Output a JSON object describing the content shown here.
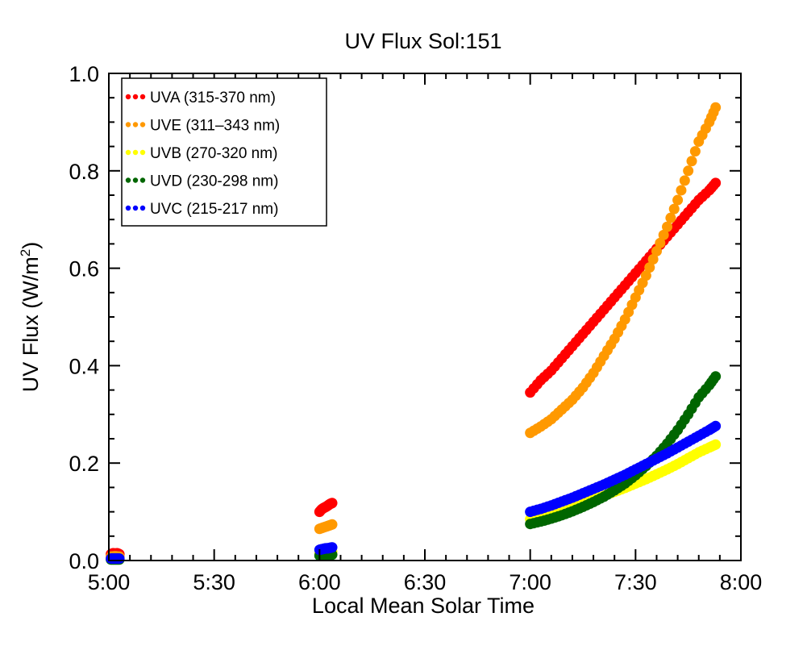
{
  "chart_data": {
    "type": "scatter",
    "title": "UV Flux Sol:151",
    "xlabel": "Local Mean Solar Time",
    "ylabel": "UV Flux (W/m",
    "ylabel_sup": "2",
    "ylabel_close": ")",
    "x_unit": "hours (local mean solar time)",
    "xlim": [
      5.0,
      8.0
    ],
    "ylim": [
      0.0,
      1.0
    ],
    "x_ticks": [
      5.0,
      5.5,
      6.0,
      6.5,
      7.0,
      7.5,
      8.0
    ],
    "x_tick_labels": [
      "5:00",
      "5:30",
      "6:00",
      "6:30",
      "7:00",
      "7:30",
      "8:00"
    ],
    "y_ticks": [
      0.0,
      0.2,
      0.4,
      0.6,
      0.8,
      1.0
    ],
    "y_tick_labels": [
      "0.0",
      "0.2",
      "0.4",
      "0.6",
      "0.8",
      "1.0"
    ],
    "legend_position": "top-left",
    "series": [
      {
        "name": "UVA (315-370 nm)",
        "color": "#ff0000",
        "points": [
          [
            5.01,
            0.013
          ],
          [
            5.02,
            0.015
          ],
          [
            5.03,
            0.014
          ],
          [
            5.04,
            0.015
          ],
          [
            5.05,
            0.013
          ],
          [
            6.0,
            0.1
          ],
          [
            6.01,
            0.105
          ],
          [
            6.02,
            0.108
          ],
          [
            6.03,
            0.11
          ],
          [
            6.04,
            0.113
          ],
          [
            6.05,
            0.116
          ],
          [
            6.06,
            0.118
          ],
          [
            7.0,
            0.345
          ],
          [
            7.05,
            0.37
          ],
          [
            7.1,
            0.39
          ],
          [
            7.15,
            0.415
          ],
          [
            7.2,
            0.44
          ],
          [
            7.25,
            0.465
          ],
          [
            7.3,
            0.49
          ],
          [
            7.35,
            0.515
          ],
          [
            7.4,
            0.54
          ],
          [
            7.45,
            0.565
          ],
          [
            7.5,
            0.59
          ],
          [
            7.55,
            0.615
          ],
          [
            7.6,
            0.64
          ],
          [
            7.65,
            0.665
          ],
          [
            7.7,
            0.69
          ],
          [
            7.75,
            0.715
          ],
          [
            7.8,
            0.74
          ],
          [
            7.85,
            0.76
          ],
          [
            7.88,
            0.775
          ]
        ]
      },
      {
        "name": "UVE (311–343 nm)",
        "color": "#ff9900",
        "points": [
          [
            5.01,
            0.008
          ],
          [
            5.03,
            0.009
          ],
          [
            5.05,
            0.008
          ],
          [
            6.0,
            0.065
          ],
          [
            6.02,
            0.068
          ],
          [
            6.04,
            0.071
          ],
          [
            6.06,
            0.074
          ],
          [
            7.0,
            0.262
          ],
          [
            7.05,
            0.275
          ],
          [
            7.1,
            0.29
          ],
          [
            7.15,
            0.31
          ],
          [
            7.2,
            0.33
          ],
          [
            7.25,
            0.355
          ],
          [
            7.3,
            0.385
          ],
          [
            7.35,
            0.42
          ],
          [
            7.4,
            0.455
          ],
          [
            7.45,
            0.495
          ],
          [
            7.5,
            0.54
          ],
          [
            7.55,
            0.585
          ],
          [
            7.6,
            0.635
          ],
          [
            7.65,
            0.685
          ],
          [
            7.7,
            0.74
          ],
          [
            7.75,
            0.8
          ],
          [
            7.8,
            0.86
          ],
          [
            7.85,
            0.9
          ],
          [
            7.88,
            0.93
          ]
        ]
      },
      {
        "name": "UVB (270-320 nm)",
        "color": "#ffff00",
        "points": [
          [
            5.01,
            0.003
          ],
          [
            5.03,
            0.003
          ],
          [
            5.05,
            0.003
          ],
          [
            6.0,
            0.015
          ],
          [
            6.02,
            0.016
          ],
          [
            6.04,
            0.017
          ],
          [
            6.06,
            0.018
          ],
          [
            7.0,
            0.085
          ],
          [
            7.05,
            0.09
          ],
          [
            7.1,
            0.097
          ],
          [
            7.15,
            0.104
          ],
          [
            7.2,
            0.111
          ],
          [
            7.25,
            0.118
          ],
          [
            7.3,
            0.125
          ],
          [
            7.35,
            0.133
          ],
          [
            7.4,
            0.141
          ],
          [
            7.45,
            0.149
          ],
          [
            7.5,
            0.158
          ],
          [
            7.55,
            0.167
          ],
          [
            7.6,
            0.177
          ],
          [
            7.65,
            0.187
          ],
          [
            7.7,
            0.198
          ],
          [
            7.75,
            0.21
          ],
          [
            7.8,
            0.222
          ],
          [
            7.85,
            0.232
          ],
          [
            7.88,
            0.238
          ]
        ]
      },
      {
        "name": "UVD (230-298 nm)",
        "color": "#006600",
        "points": [
          [
            5.01,
            0.002
          ],
          [
            5.03,
            0.002
          ],
          [
            5.05,
            0.002
          ],
          [
            6.0,
            0.01
          ],
          [
            6.02,
            0.011
          ],
          [
            6.04,
            0.011
          ],
          [
            6.06,
            0.012
          ],
          [
            7.0,
            0.075
          ],
          [
            7.05,
            0.08
          ],
          [
            7.1,
            0.086
          ],
          [
            7.15,
            0.093
          ],
          [
            7.2,
            0.101
          ],
          [
            7.25,
            0.11
          ],
          [
            7.3,
            0.12
          ],
          [
            7.35,
            0.131
          ],
          [
            7.4,
            0.144
          ],
          [
            7.45,
            0.158
          ],
          [
            7.5,
            0.175
          ],
          [
            7.55,
            0.194
          ],
          [
            7.6,
            0.215
          ],
          [
            7.65,
            0.24
          ],
          [
            7.7,
            0.268
          ],
          [
            7.75,
            0.3
          ],
          [
            7.8,
            0.335
          ],
          [
            7.85,
            0.36
          ],
          [
            7.88,
            0.378
          ]
        ]
      },
      {
        "name": "UVC (215-217 nm)",
        "color": "#0000ff",
        "points": [
          [
            5.01,
            0.004
          ],
          [
            5.02,
            0.004
          ],
          [
            5.03,
            0.004
          ],
          [
            5.04,
            0.004
          ],
          [
            5.05,
            0.004
          ],
          [
            6.0,
            0.022
          ],
          [
            6.01,
            0.023
          ],
          [
            6.02,
            0.024
          ],
          [
            6.03,
            0.025
          ],
          [
            6.04,
            0.025
          ],
          [
            6.05,
            0.026
          ],
          [
            6.06,
            0.027
          ],
          [
            7.0,
            0.1
          ],
          [
            7.05,
            0.106
          ],
          [
            7.1,
            0.113
          ],
          [
            7.15,
            0.121
          ],
          [
            7.2,
            0.129
          ],
          [
            7.25,
            0.138
          ],
          [
            7.3,
            0.147
          ],
          [
            7.35,
            0.156
          ],
          [
            7.4,
            0.166
          ],
          [
            7.45,
            0.176
          ],
          [
            7.5,
            0.187
          ],
          [
            7.55,
            0.198
          ],
          [
            7.6,
            0.209
          ],
          [
            7.65,
            0.22
          ],
          [
            7.7,
            0.232
          ],
          [
            7.75,
            0.244
          ],
          [
            7.8,
            0.256
          ],
          [
            7.85,
            0.268
          ],
          [
            7.88,
            0.276
          ]
        ]
      }
    ]
  }
}
